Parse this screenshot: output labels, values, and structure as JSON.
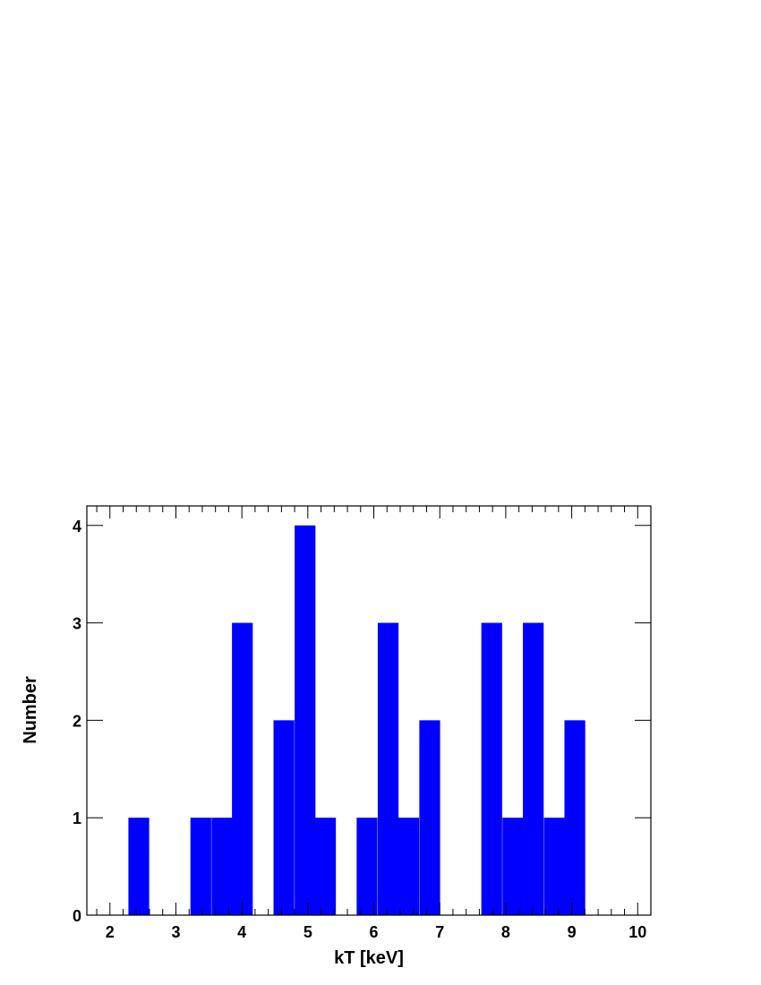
{
  "chart_data": {
    "type": "bar",
    "title": "",
    "xlabel": "kT [keV]",
    "ylabel": "Number",
    "xlim": [
      1.65,
      10.2
    ],
    "ylim": [
      0,
      4.2
    ],
    "bin_width": 0.315,
    "bar_color": "#0000ff",
    "x_ticks": [
      2,
      3,
      4,
      5,
      6,
      7,
      8,
      9,
      10
    ],
    "y_ticks": [
      0,
      1,
      2,
      3,
      4
    ],
    "bins": [
      {
        "x0": 2.28,
        "count": 1
      },
      {
        "x0": 3.22,
        "count": 1
      },
      {
        "x0": 3.54,
        "count": 1
      },
      {
        "x0": 3.85,
        "count": 3
      },
      {
        "x0": 4.48,
        "count": 2
      },
      {
        "x0": 4.8,
        "count": 4
      },
      {
        "x0": 5.11,
        "count": 1
      },
      {
        "x0": 5.74,
        "count": 1
      },
      {
        "x0": 6.06,
        "count": 3
      },
      {
        "x0": 6.37,
        "count": 1
      },
      {
        "x0": 6.69,
        "count": 2
      },
      {
        "x0": 7.63,
        "count": 3
      },
      {
        "x0": 7.95,
        "count": 1
      },
      {
        "x0": 8.26,
        "count": 3
      },
      {
        "x0": 8.58,
        "count": 1
      },
      {
        "x0": 8.89,
        "count": 2
      }
    ]
  }
}
